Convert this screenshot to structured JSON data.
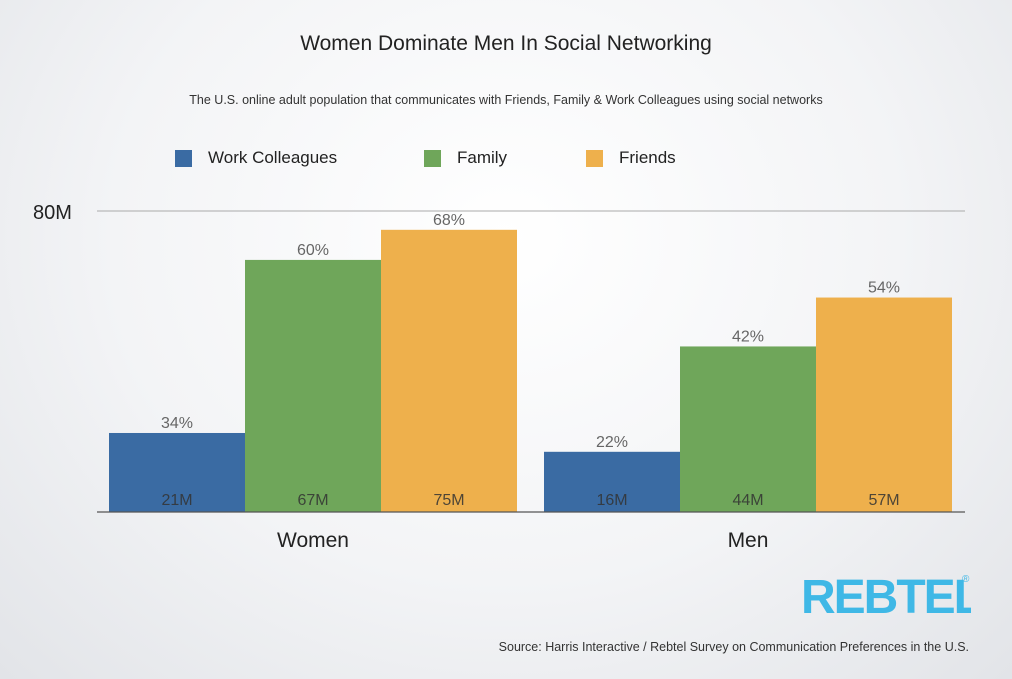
{
  "title": "Women Dominate Men In Social Networking",
  "subtitle": "The U.S. online adult population that communicates with Friends, Family & Work Colleagues using social networks",
  "source": "Source: Harris Interactive / Rebtel Survey on Communication Preferences in the U.S.",
  "logo": {
    "text": "REBTEL",
    "mark": "®",
    "color": "#3fb8e6"
  },
  "colors": {
    "work": "#3a6ba3",
    "family": "#6fa65a",
    "friends": "#eeb04c",
    "axis": "#777777",
    "grid": "#aaaaaa"
  },
  "chart_data": {
    "type": "bar",
    "categories": [
      "Women",
      "Men"
    ],
    "ylim": [
      0,
      80
    ],
    "y_tick_label": "80M",
    "grid": true,
    "legend_position": "top",
    "series": [
      {
        "name": "Work Colleagues",
        "color": "#3a6ba3",
        "values": [
          21,
          16
        ],
        "value_labels": [
          "21M",
          "16M"
        ],
        "percent_labels": [
          "34%",
          "22%"
        ]
      },
      {
        "name": "Family",
        "color": "#6fa65a",
        "values": [
          67,
          44
        ],
        "value_labels": [
          "67M",
          "44M"
        ],
        "percent_labels": [
          "60%",
          "42%"
        ]
      },
      {
        "name": "Friends",
        "color": "#eeb04c",
        "values": [
          75,
          57
        ],
        "value_labels": [
          "75M",
          "57M"
        ],
        "percent_labels": [
          "68%",
          "54%"
        ]
      }
    ]
  }
}
